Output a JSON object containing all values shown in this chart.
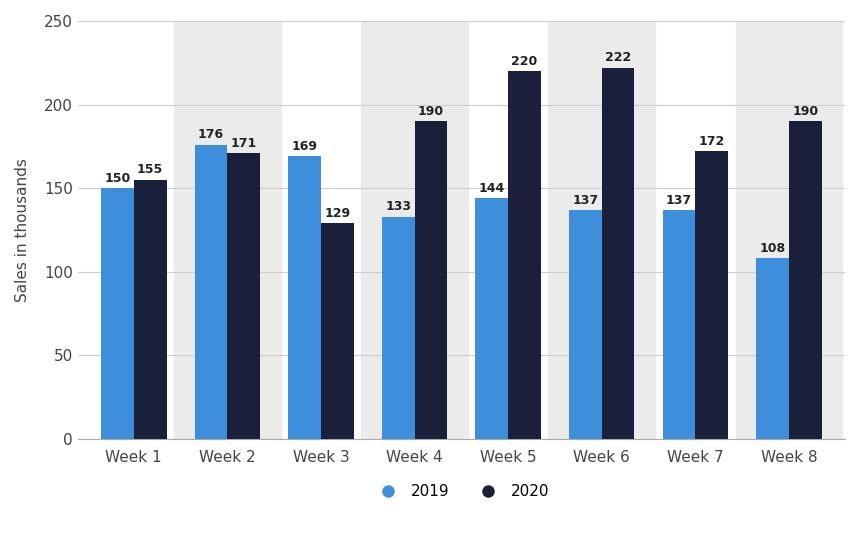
{
  "categories": [
    "Week 1",
    "Week 2",
    "Week 3",
    "Week 4",
    "Week 5",
    "Week 6",
    "Week 7",
    "Week 8"
  ],
  "values_2019": [
    150,
    176,
    169,
    133,
    144,
    137,
    137,
    108
  ],
  "values_2020": [
    155,
    171,
    129,
    190,
    220,
    222,
    172,
    190
  ],
  "color_2019": "#3d8fdb",
  "color_2020": "#1a1f3c",
  "ylabel": "Sales in thousands",
  "ylim": [
    0,
    250
  ],
  "yticks": [
    0,
    50,
    100,
    150,
    200,
    250
  ],
  "legend_labels": [
    "2019",
    "2020"
  ],
  "background_color": "#ffffff",
  "plot_bg_color": "#ebebeb",
  "bar_width": 0.35,
  "label_fontsize": 9,
  "axis_fontsize": 11,
  "legend_fontsize": 11,
  "shaded_indices": [
    1,
    3,
    5,
    7
  ]
}
